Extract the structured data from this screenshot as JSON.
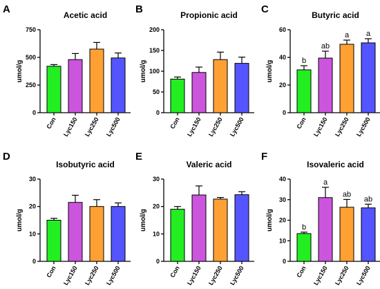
{
  "figure": {
    "colors": {
      "Con": "#22ee22",
      "Lyc150": "#cc55dd",
      "Lyc250": "#ffa033",
      "Lyc500": "#5555ff"
    }
  },
  "chart_data": [
    {
      "panel": "A",
      "type": "bar",
      "title": "Acetic acid",
      "ylabel": "umol/g",
      "ylim": [
        0,
        750
      ],
      "yticks": [
        0,
        250,
        500,
        750
      ],
      "categories": [
        "Con",
        "Lyc150",
        "Lyc250",
        "Lyc500"
      ],
      "values": [
        420,
        480,
        575,
        495
      ],
      "errors": [
        15,
        55,
        60,
        45
      ],
      "significance": [
        "",
        "",
        "",
        ""
      ]
    },
    {
      "panel": "B",
      "type": "bar",
      "title": "Propionic acid",
      "ylabel": "umol/g",
      "ylim": [
        0,
        200
      ],
      "yticks": [
        0,
        50,
        100,
        150,
        200
      ],
      "categories": [
        "Con",
        "Lyc150",
        "Lyc250",
        "Lyc500"
      ],
      "values": [
        81,
        97,
        128,
        119
      ],
      "errors": [
        5,
        13,
        18,
        15
      ],
      "significance": [
        "",
        "",
        "",
        ""
      ]
    },
    {
      "panel": "C",
      "type": "bar",
      "title": "Butyric acid",
      "ylabel": "umol/g",
      "ylim": [
        0,
        60
      ],
      "yticks": [
        0,
        20,
        40,
        60
      ],
      "categories": [
        "Con",
        "Lyc150",
        "Lyc250",
        "Lyc500"
      ],
      "values": [
        31,
        39.5,
        49.5,
        50.5
      ],
      "errors": [
        3,
        5,
        3,
        3
      ],
      "significance": [
        "b",
        "ab",
        "a",
        "a"
      ]
    },
    {
      "panel": "D",
      "type": "bar",
      "title": "Isobutyric acid",
      "ylabel": "umol/g",
      "ylim": [
        0,
        30
      ],
      "yticks": [
        0,
        10,
        20,
        30
      ],
      "categories": [
        "Con",
        "Lyc150",
        "Lyc250",
        "Lyc500"
      ],
      "values": [
        15,
        21.5,
        20,
        20
      ],
      "errors": [
        0.7,
        2.6,
        2.5,
        1.3
      ],
      "significance": [
        "",
        "",
        "",
        ""
      ]
    },
    {
      "panel": "E",
      "type": "bar",
      "title": "Valeric acid",
      "ylabel": "umol/g",
      "ylim": [
        0,
        30
      ],
      "yticks": [
        0,
        10,
        20,
        30
      ],
      "categories": [
        "Con",
        "Lyc150",
        "Lyc250",
        "Lyc500"
      ],
      "values": [
        19,
        24.2,
        22.7,
        24.3
      ],
      "errors": [
        1,
        3.3,
        0.6,
        1.1
      ],
      "significance": [
        "",
        "",
        "",
        ""
      ]
    },
    {
      "panel": "F",
      "type": "bar",
      "title": "Isovaleric acid",
      "ylabel": "umol/g",
      "ylim": [
        0,
        40
      ],
      "yticks": [
        0,
        10,
        20,
        30,
        40
      ],
      "categories": [
        "Con",
        "Lyc150",
        "Lyc250",
        "Lyc500"
      ],
      "values": [
        13.5,
        31,
        26.3,
        26
      ],
      "errors": [
        0.7,
        5,
        3.8,
        1.8
      ],
      "significance": [
        "b",
        "a",
        "ab",
        "ab"
      ]
    }
  ]
}
